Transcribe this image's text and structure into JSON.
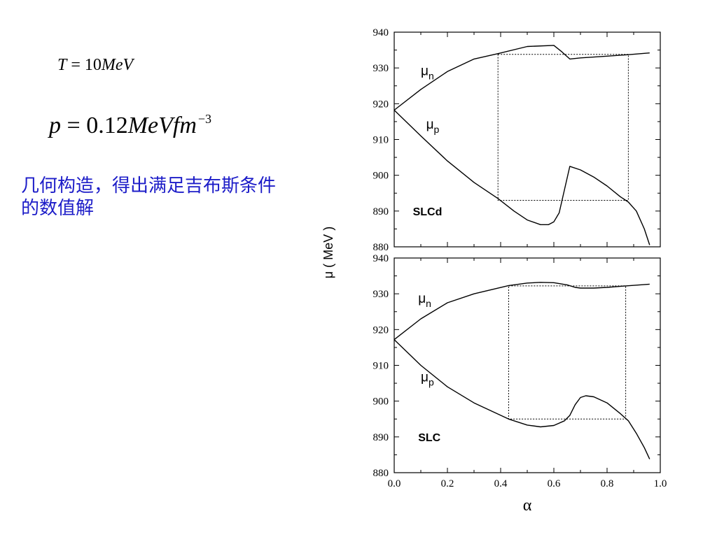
{
  "left_text": {
    "temperature_eq": {
      "var": "T",
      "op": "=",
      "value": "10",
      "unit": "MeV"
    },
    "pressure_eq": {
      "var": "p",
      "op": "=",
      "value": "0.12",
      "unit": "MeVfm",
      "exp": "−3"
    },
    "note": "几何构造，得出满足吉布斯条件的数值解"
  },
  "chart_data": [
    {
      "type": "line",
      "panel_label": "SLCd",
      "xlim": [
        0.0,
        1.0
      ],
      "ylim": [
        880,
        940
      ],
      "yticks": [
        880,
        890,
        900,
        910,
        920,
        930,
        940
      ],
      "ylabel": "μ ( MeV )",
      "series": [
        {
          "name": "μ_n",
          "label_main": "μ",
          "label_sub": "n",
          "x": [
            0.0,
            0.1,
            0.2,
            0.3,
            0.39,
            0.5,
            0.6,
            0.63,
            0.66,
            0.7,
            0.8,
            0.88,
            0.96
          ],
          "y": [
            918.2,
            924.0,
            929.0,
            932.5,
            934.0,
            936.0,
            936.3,
            934.5,
            932.5,
            932.8,
            933.3,
            933.7,
            934.2
          ]
        },
        {
          "name": "μ_p",
          "label_main": "μ",
          "label_sub": "p",
          "x": [
            0.0,
            0.1,
            0.2,
            0.3,
            0.39,
            0.45,
            0.5,
            0.55,
            0.58,
            0.6,
            0.62,
            0.64,
            0.66,
            0.7,
            0.75,
            0.8,
            0.85,
            0.88,
            0.91,
            0.94,
            0.96
          ],
          "y": [
            918.2,
            911.0,
            904.0,
            898.0,
            893.5,
            890.0,
            887.5,
            886.2,
            886.2,
            887.0,
            889.5,
            896.0,
            902.5,
            901.5,
            899.5,
            897.0,
            894.0,
            892.5,
            890.0,
            885.0,
            880.5
          ]
        }
      ],
      "coexistence_box": {
        "x": [
          0.39,
          0.88
        ],
        "y": [
          893.0,
          933.8
        ]
      }
    },
    {
      "type": "line",
      "panel_label": "SLC",
      "xlim": [
        0.0,
        1.0
      ],
      "ylim": [
        880,
        940
      ],
      "xticks": [
        0.0,
        0.2,
        0.4,
        0.6,
        0.8,
        1.0
      ],
      "yticks": [
        880,
        890,
        900,
        910,
        920,
        930,
        940
      ],
      "xlabel": "α",
      "series": [
        {
          "name": "μ_n",
          "label_main": "μ",
          "label_sub": "n",
          "x": [
            0.0,
            0.1,
            0.2,
            0.3,
            0.43,
            0.5,
            0.55,
            0.6,
            0.65,
            0.68,
            0.7,
            0.75,
            0.8,
            0.87,
            0.96
          ],
          "y": [
            917.2,
            923.0,
            927.5,
            930.0,
            932.3,
            933.0,
            933.2,
            933.1,
            932.5,
            931.8,
            931.6,
            931.6,
            931.8,
            932.2,
            932.7
          ]
        },
        {
          "name": "μ_p",
          "label_main": "μ",
          "label_sub": "p",
          "x": [
            0.0,
            0.1,
            0.2,
            0.3,
            0.43,
            0.5,
            0.55,
            0.6,
            0.64,
            0.66,
            0.68,
            0.7,
            0.72,
            0.75,
            0.8,
            0.85,
            0.88,
            0.91,
            0.94,
            0.96
          ],
          "y": [
            917.2,
            910.0,
            904.0,
            899.5,
            895.0,
            893.3,
            892.8,
            893.2,
            894.5,
            896.0,
            899.0,
            901.0,
            901.5,
            901.2,
            899.5,
            896.5,
            894.5,
            891.0,
            887.0,
            883.8
          ]
        }
      ],
      "coexistence_box": {
        "x": [
          0.43,
          0.87
        ],
        "y": [
          895.0,
          932.2
        ]
      }
    }
  ]
}
